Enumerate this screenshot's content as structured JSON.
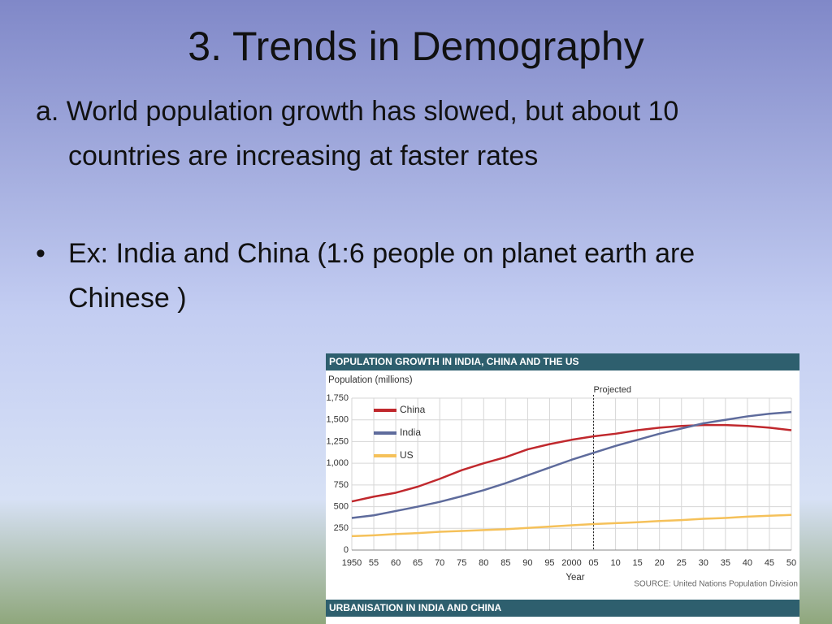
{
  "slide_title": "3. Trends in Demography",
  "bullets": [
    "a. World population growth has slowed, but about 10 countries are increasing at faster rates",
    "Ex: India and China (1:6  people on planet earth are Chinese )"
  ],
  "chart_data": {
    "type": "line",
    "title": "POPULATION GROWTH IN INDIA, CHINA AND THE US",
    "y_label": "Population (millions)",
    "x_label": "Year",
    "source": "SOURCE: United Nations Population Division",
    "x": [
      1950,
      1955,
      1960,
      1965,
      1970,
      1975,
      1980,
      1985,
      1990,
      1995,
      2000,
      2005,
      2010,
      2015,
      2020,
      2025,
      2030,
      2035,
      2040,
      2045,
      2050
    ],
    "xlim": [
      1950,
      2050
    ],
    "xticks": [
      1950,
      {
        "value": 1955,
        "label": "55"
      },
      {
        "value": 1960,
        "label": "60"
      },
      {
        "value": 1965,
        "label": "65"
      },
      {
        "value": 1970,
        "label": "70"
      },
      {
        "value": 1975,
        "label": "75"
      },
      {
        "value": 1980,
        "label": "80"
      },
      {
        "value": 1985,
        "label": "85"
      },
      {
        "value": 1990,
        "label": "90"
      },
      {
        "value": 1995,
        "label": "95"
      },
      2000,
      {
        "value": 2005,
        "label": "05"
      },
      {
        "value": 2010,
        "label": "10"
      },
      {
        "value": 2015,
        "label": "15"
      },
      {
        "value": 2020,
        "label": "20"
      },
      {
        "value": 2025,
        "label": "25"
      },
      {
        "value": 2030,
        "label": "30"
      },
      {
        "value": 2035,
        "label": "35"
      },
      {
        "value": 2040,
        "label": "40"
      },
      {
        "value": 2045,
        "label": "45"
      },
      {
        "value": 2050,
        "label": "50"
      }
    ],
    "ylim": [
      0,
      1750
    ],
    "yticks": [
      0,
      250,
      500,
      750,
      {
        "value": 1000,
        "label": "1,000"
      },
      {
        "value": 1250,
        "label": "1,250"
      },
      {
        "value": 1500,
        "label": "1,500"
      },
      {
        "value": 1750,
        "label": "1,750"
      }
    ],
    "grid": true,
    "legend": "upper left",
    "series": [
      {
        "name": "China",
        "color": "#c0282d",
        "values": [
          560,
          615,
          660,
          730,
          820,
          920,
          1000,
          1070,
          1160,
          1220,
          1270,
          1310,
          1340,
          1380,
          1410,
          1430,
          1440,
          1440,
          1430,
          1410,
          1380
        ]
      },
      {
        "name": "India",
        "color": "#5e6b9c",
        "values": [
          370,
          400,
          450,
          500,
          555,
          620,
          690,
          770,
          860,
          950,
          1040,
          1120,
          1200,
          1270,
          1340,
          1400,
          1460,
          1500,
          1540,
          1570,
          1590
        ]
      },
      {
        "name": "US",
        "color": "#f5c15a",
        "values": [
          160,
          170,
          185,
          195,
          210,
          220,
          230,
          240,
          255,
          270,
          285,
          300,
          310,
          320,
          335,
          345,
          360,
          370,
          385,
          395,
          405
        ]
      }
    ],
    "annotations": [
      {
        "text": "Projected",
        "x": 2005
      }
    ]
  },
  "next_panel": {
    "title": "URBANISATION IN INDIA AND CHINA"
  }
}
